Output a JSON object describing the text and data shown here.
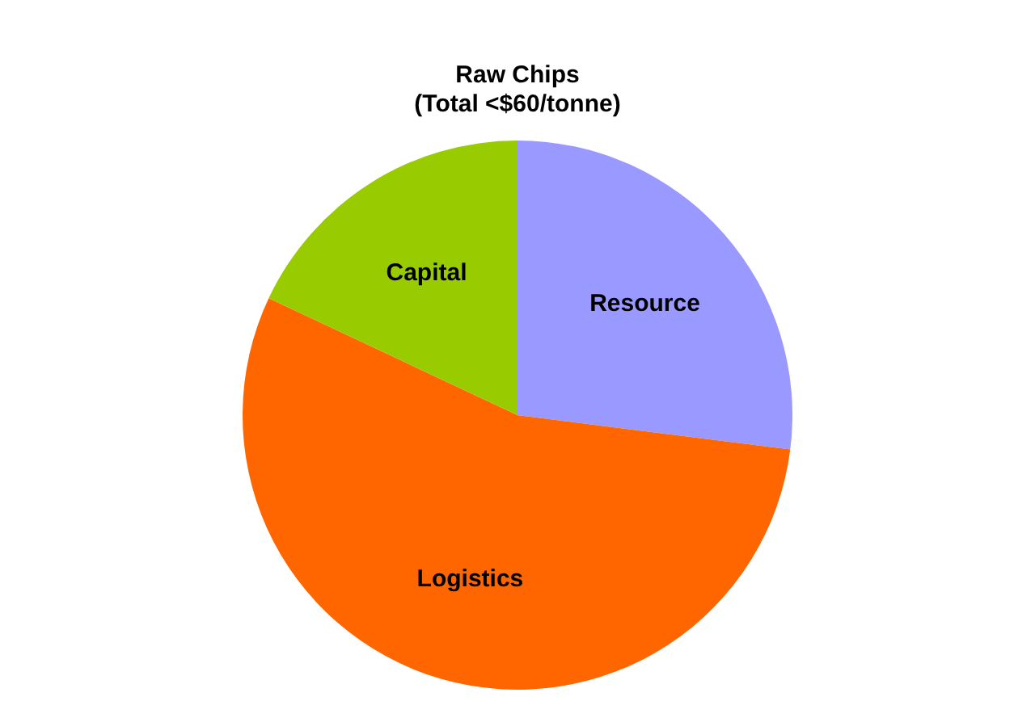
{
  "chart_data": {
    "type": "pie",
    "title": "Raw Chips",
    "subtitle": "(Total <$60/tonne)",
    "categories": [
      "Resource",
      "Logistics",
      "Capital"
    ],
    "values": [
      27,
      55,
      18
    ],
    "colors": [
      "#9999ff",
      "#ff6600",
      "#99cc00"
    ],
    "legend": false
  }
}
